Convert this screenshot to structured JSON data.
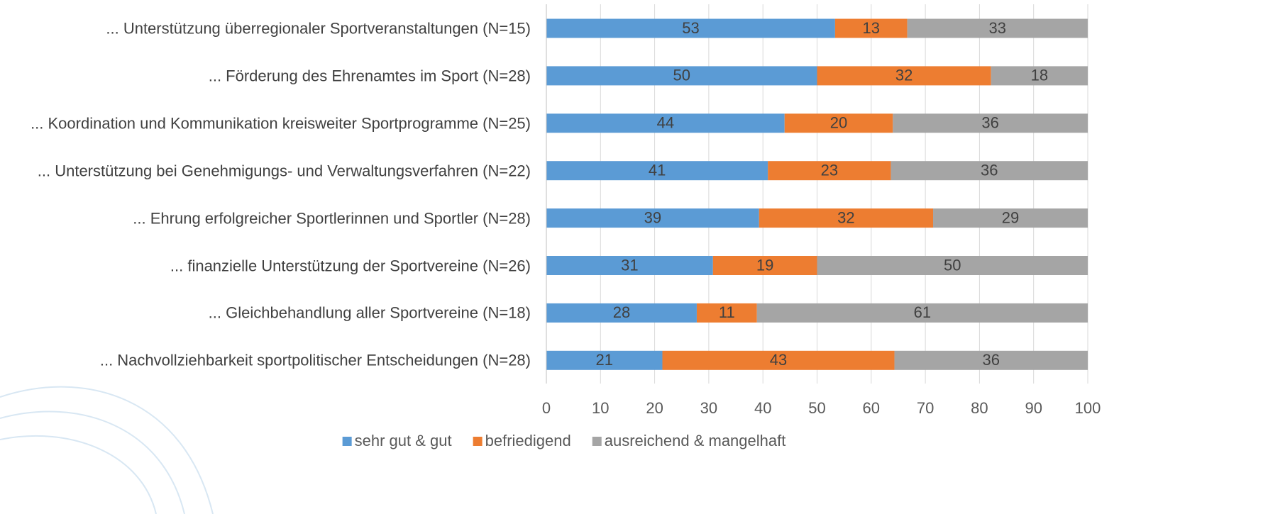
{
  "chart_data": {
    "type": "stacked-barh",
    "categories": [
      "... Unterstützung überregionaler Sportveranstaltungen (N=15)",
      "... Förderung des Ehrenamtes im Sport (N=28)",
      "... Koordination und Kommunikation kreisweiter Sportprogramme (N=25)",
      "... Unterstützung bei Genehmigungs- und Verwaltungsverfahren (N=22)",
      "... Ehrung erfolgreicher Sportlerinnen und Sportler (N=28)",
      "... finanzielle Unterstützung der Sportvereine (N=26)",
      "... Gleichbehandlung aller Sportvereine (N=18)",
      "... Nachvollziehbarkeit sportpolitischer Entscheidungen (N=28)"
    ],
    "series": [
      {
        "name": "sehr gut & gut",
        "color": "#5b9bd5",
        "values": [
          53.33,
          50,
          44,
          40.91,
          39.29,
          30.77,
          27.78,
          21.43
        ],
        "value_labels": [
          "53",
          "50",
          "44",
          "41",
          "39",
          "31",
          "28",
          "21"
        ]
      },
      {
        "name": "befriedigend",
        "color": "#ed7d31",
        "values": [
          13.33,
          32.14,
          20,
          22.73,
          32.14,
          19.23,
          11.11,
          42.86
        ],
        "value_labels": [
          "13",
          "32",
          "20",
          "23",
          "32",
          "19",
          "11",
          "43"
        ]
      },
      {
        "name": "ausreichend & mangelhaft",
        "color": "#a5a5a5",
        "values": [
          33.33,
          17.86,
          36,
          36.36,
          28.57,
          50,
          61.11,
          35.71
        ],
        "value_labels": [
          "33",
          "18",
          "36",
          "36",
          "29",
          "50",
          "61",
          "36"
        ]
      }
    ],
    "xlim": [
      0,
      100
    ],
    "xticks": [
      0,
      10,
      20,
      30,
      40,
      50,
      60,
      70,
      80,
      90,
      100
    ],
    "grid": true,
    "legend": "bottom"
  }
}
